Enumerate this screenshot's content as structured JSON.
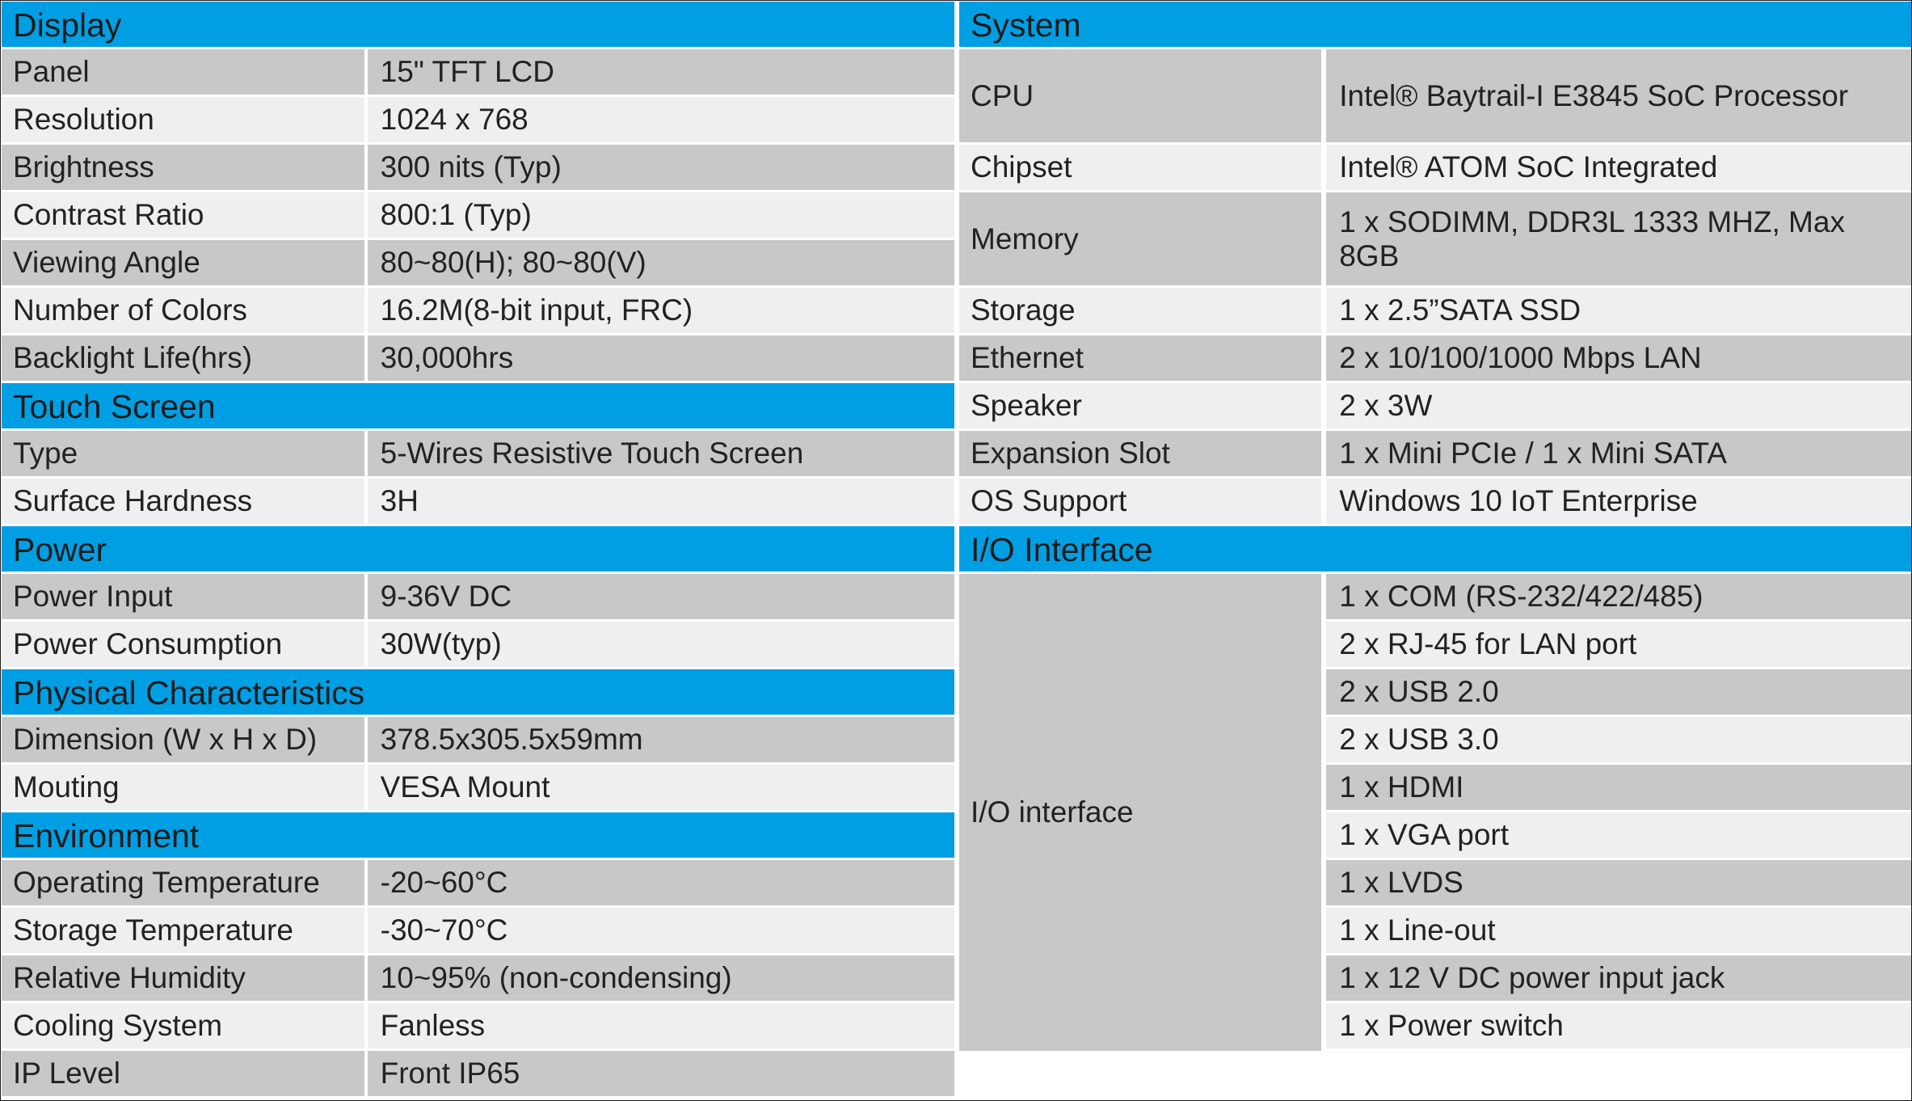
{
  "left_sections": [
    {
      "title": "Display",
      "rows": [
        {
          "label": "Panel",
          "value": "15\" TFT LCD"
        },
        {
          "label": "Resolution",
          "value": "1024 x 768"
        },
        {
          "label": "Brightness",
          "value": "300 nits (Typ)"
        },
        {
          "label": "Contrast Ratio",
          "value": "800:1 (Typ)"
        },
        {
          "label": "Viewing Angle",
          "value": "80~80(H); 80~80(V)"
        },
        {
          "label": "Number of Colors",
          "value": "16.2M(8-bit input, FRC)"
        },
        {
          "label": "Backlight Life(hrs)",
          "value": "30,000hrs"
        }
      ]
    },
    {
      "title": "Touch Screen",
      "rows": [
        {
          "label": "Type",
          "value": "5-Wires Resistive Touch Screen"
        },
        {
          "label": "Surface Hardness",
          "value": "3H"
        }
      ]
    },
    {
      "title": "Power",
      "rows": [
        {
          "label": "Power Input",
          "value": "9-36V DC"
        },
        {
          "label": "Power Consumption",
          "value": "30W(typ)"
        }
      ]
    },
    {
      "title": "Physical Characteristics",
      "rows": [
        {
          "label": "Dimension (W x H x D)",
          "value": "378.5x305.5x59mm"
        },
        {
          "label": "Mouting",
          "value": "VESA Mount"
        }
      ]
    },
    {
      "title": "Environment",
      "rows": [
        {
          "label": "Operating Temperature",
          "value": "-20~60°C"
        },
        {
          "label": "Storage Temperature",
          "value": "-30~70°C"
        },
        {
          "label": "Relative Humidity",
          "value": "10~95% (non-condensing)"
        },
        {
          "label": "Cooling System",
          "value": "Fanless"
        },
        {
          "label": "IP Level",
          "value": "Front IP65"
        }
      ]
    }
  ],
  "system": {
    "title": "System",
    "rows": [
      {
        "label": "CPU",
        "value": "Intel® Baytrail-I E3845 SoC Processor"
      },
      {
        "label": "Chipset",
        "value": "Intel® ATOM SoC Integrated"
      },
      {
        "label": "Memory",
        "value": "1 x SODIMM, DDR3L 1333 MHZ, Max 8GB"
      },
      {
        "label": "Storage",
        "value": "1 x 2.5”SATA SSD"
      },
      {
        "label": "Ethernet",
        "value": "2 x 10/100/1000 Mbps LAN"
      },
      {
        "label": "Speaker",
        "value": "2 x 3W"
      },
      {
        "label": "Expansion Slot",
        "value": "1 x Mini PCIe / 1 x Mini SATA"
      },
      {
        "label": "OS Support",
        "value": "Windows 10 IoT Enterprise"
      }
    ]
  },
  "io": {
    "title": "I/O Interface",
    "label": "I/O interface",
    "items": [
      "1 x COM (RS-232/422/485)",
      "2 x RJ-45 for LAN port",
      "2 x USB 2.0",
      "2 x USB 3.0",
      "1 x HDMI",
      "1 x VGA port",
      "1 x LVDS",
      "1 x Line-out",
      "1 x 12 V DC power input jack",
      "1 x Power switch"
    ]
  }
}
